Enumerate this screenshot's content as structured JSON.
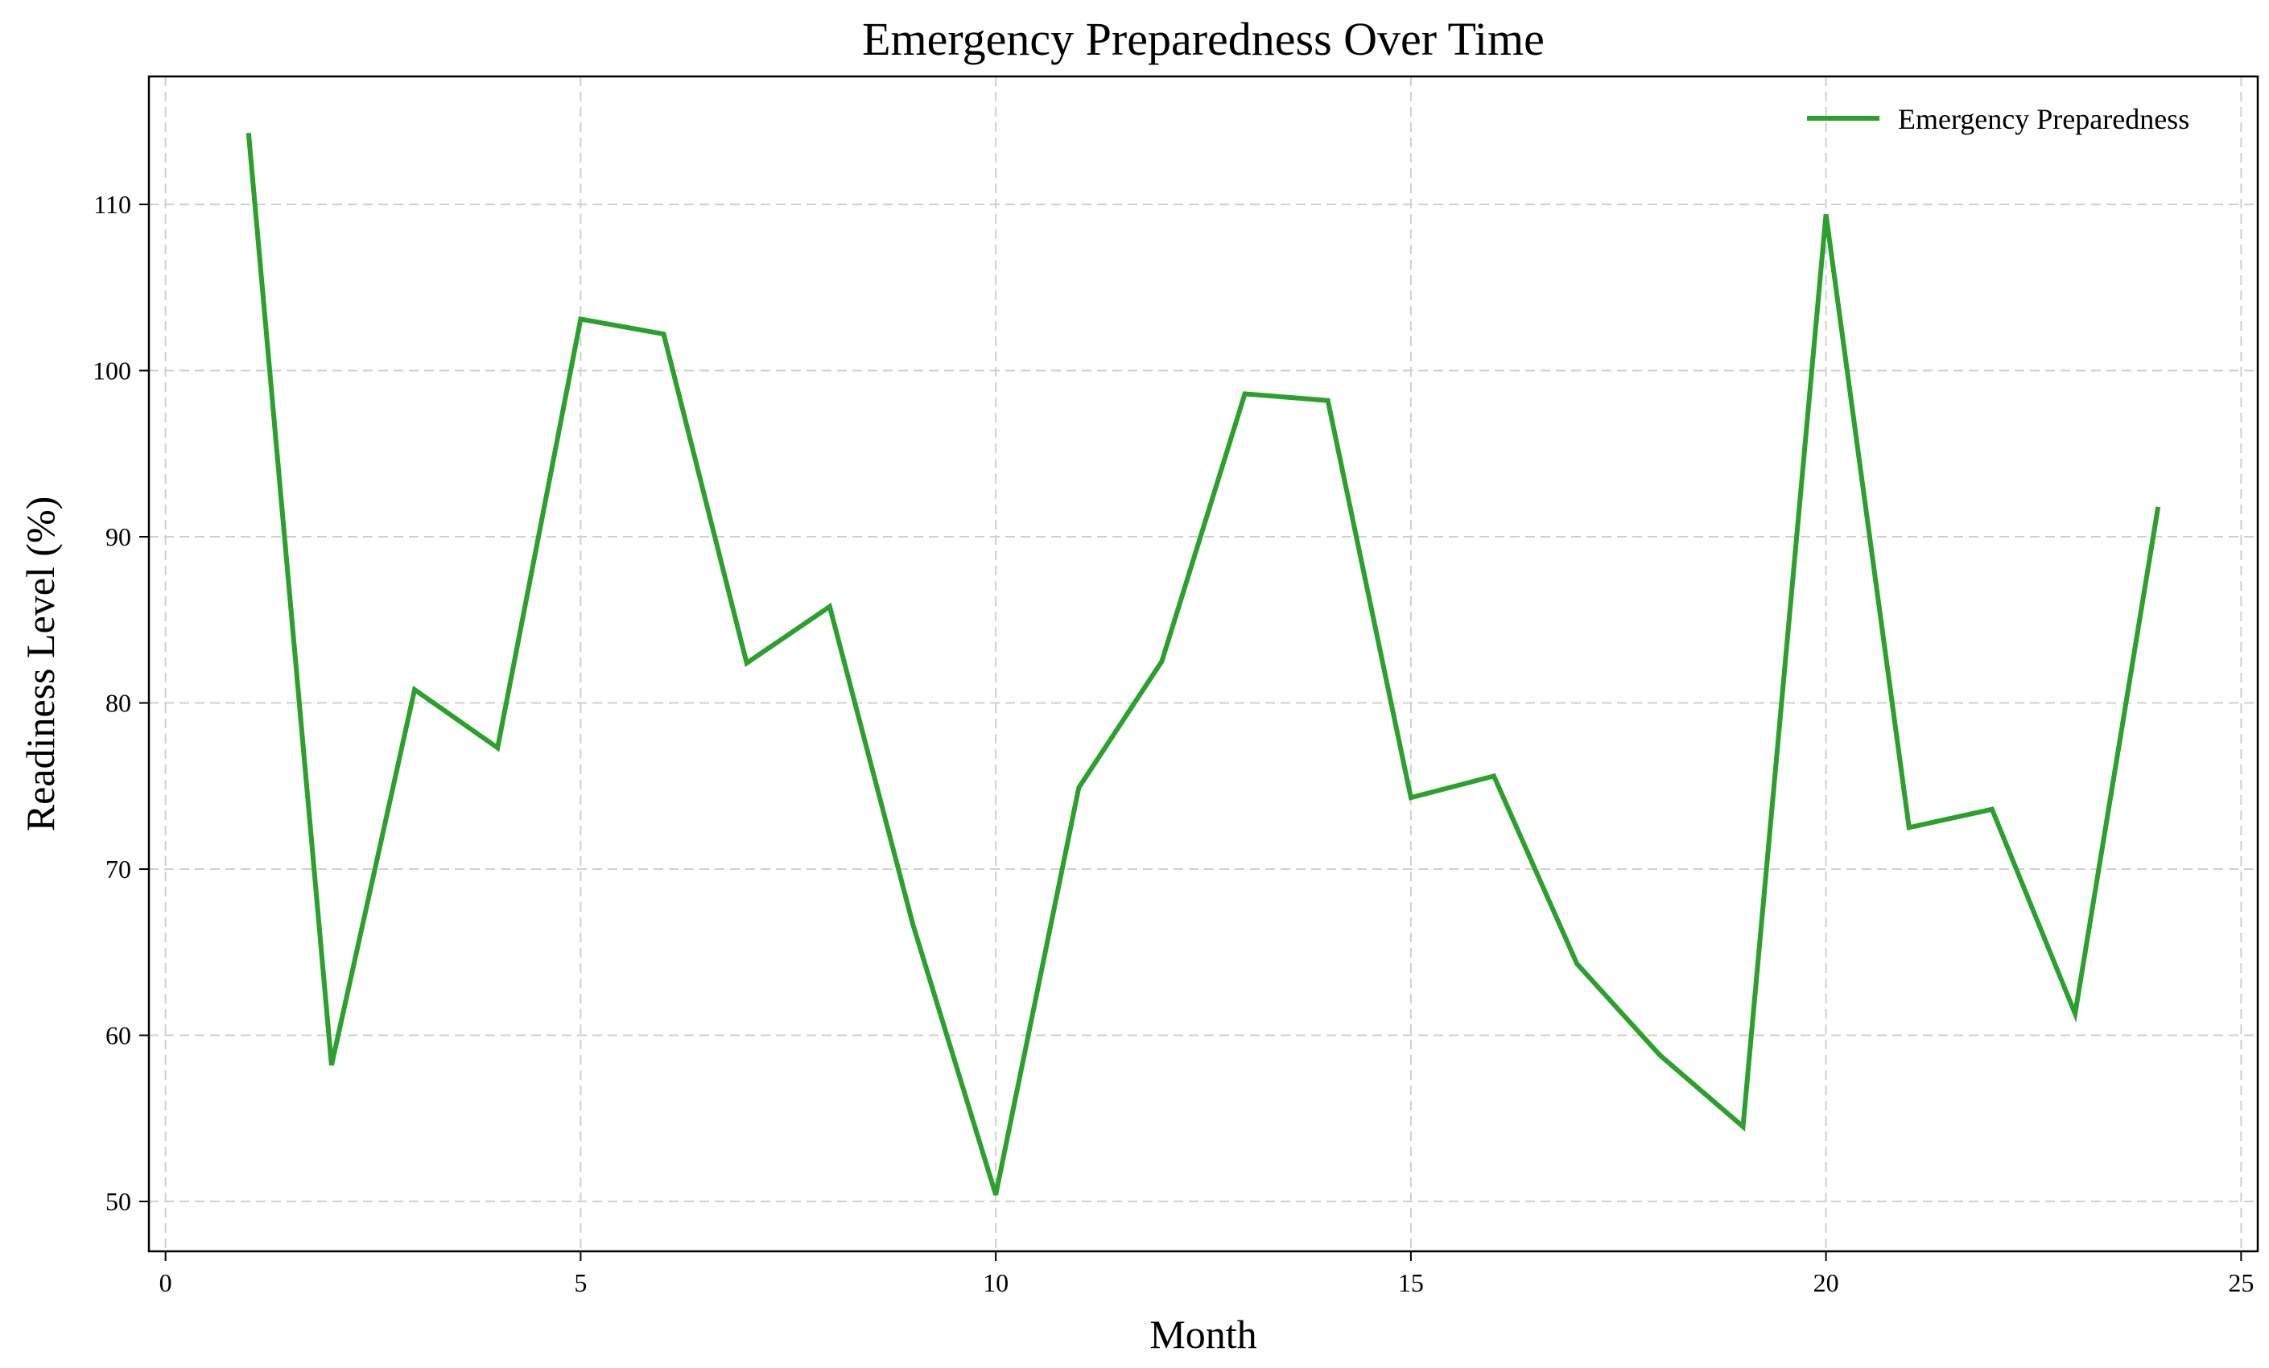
{
  "chart_data": {
    "type": "line",
    "title": "Emergency Preparedness Over Time",
    "xlabel": "Month",
    "ylabel": "Readiness Level (%)",
    "xlim": [
      -0.2,
      25.2
    ],
    "ylim": [
      47.0,
      117.7
    ],
    "xticks": [
      0,
      5,
      10,
      15,
      20,
      25
    ],
    "yticks": [
      50,
      60,
      70,
      80,
      90,
      100,
      110
    ],
    "grid": true,
    "legend_position": "top-right",
    "series": [
      {
        "name": "Emergency Preparedness",
        "color": "#2ca02c",
        "x": [
          1,
          2,
          3,
          4,
          5,
          6,
          7,
          8,
          9,
          10,
          11,
          12,
          13,
          14,
          15,
          16,
          17,
          18,
          19,
          20,
          21,
          22,
          23,
          24
        ],
        "y": [
          114.3,
          58.2,
          80.8,
          77.3,
          103.1,
          102.2,
          82.4,
          85.8,
          66.7,
          50.4,
          74.9,
          82.5,
          98.6,
          98.2,
          74.3,
          75.6,
          64.3,
          58.8,
          54.5,
          109.4,
          72.5,
          73.6,
          61.3,
          91.8
        ]
      }
    ]
  }
}
